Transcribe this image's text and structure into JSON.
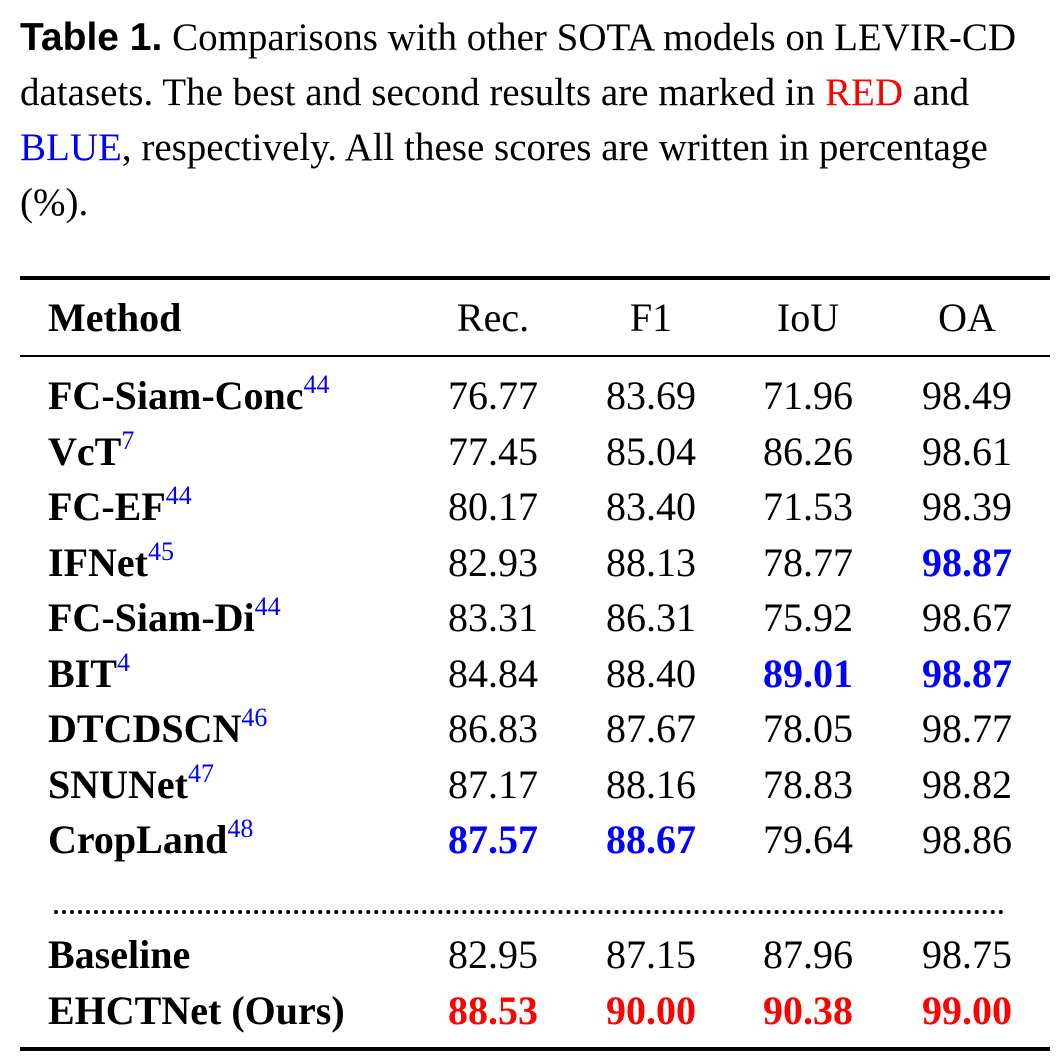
{
  "caption": {
    "label": "Table 1.",
    "text1": " Comparisons with other SOTA models on LEVIR-CD datasets. The best and second results are marked in ",
    "best_word": "RED",
    "text2": " and ",
    "second_word": "BLUE",
    "text3": ", respectively. All these scores are written in percentage (%)."
  },
  "colors": {
    "best": "#ff0000",
    "second": "#0000ff"
  },
  "table": {
    "header": [
      "Method",
      "Rec.",
      "F1",
      "IoU",
      "OA"
    ],
    "groups": [
      [
        {
          "method": "FC-Siam-Conc",
          "ref": "44",
          "cells": [
            "76.77",
            "83.69",
            "71.96",
            "98.49"
          ],
          "ranks": [
            null,
            null,
            null,
            null
          ]
        },
        {
          "method": "VcT",
          "ref": "7",
          "cells": [
            "77.45",
            "85.04",
            "86.26",
            "98.61"
          ],
          "ranks": [
            null,
            null,
            null,
            null
          ]
        },
        {
          "method": "FC-EF",
          "ref": "44",
          "cells": [
            "80.17",
            "83.40",
            "71.53",
            "98.39"
          ],
          "ranks": [
            null,
            null,
            null,
            null
          ]
        },
        {
          "method": "IFNet",
          "ref": "45",
          "cells": [
            "82.93",
            "88.13",
            "78.77",
            "98.87"
          ],
          "ranks": [
            null,
            null,
            null,
            "second"
          ]
        },
        {
          "method": "FC-Siam-Di",
          "ref": "44",
          "cells": [
            "83.31",
            "86.31",
            "75.92",
            "98.67"
          ],
          "ranks": [
            null,
            null,
            null,
            null
          ]
        },
        {
          "method": "BIT",
          "ref": "4",
          "cells": [
            "84.84",
            "88.40",
            "89.01",
            "98.87"
          ],
          "ranks": [
            null,
            null,
            "second",
            "second"
          ]
        },
        {
          "method": "DTCDSCN",
          "ref": "46",
          "cells": [
            "86.83",
            "87.67",
            "78.05",
            "98.77"
          ],
          "ranks": [
            null,
            null,
            null,
            null
          ]
        },
        {
          "method": "SNUNet",
          "ref": "47",
          "cells": [
            "87.17",
            "88.16",
            "78.83",
            "98.82"
          ],
          "ranks": [
            null,
            null,
            null,
            null
          ]
        },
        {
          "method": "CropLand",
          "ref": "48",
          "cells": [
            "87.57",
            "88.67",
            "79.64",
            "98.86"
          ],
          "ranks": [
            "second",
            "second",
            null,
            null
          ]
        }
      ],
      [
        {
          "method": "Baseline",
          "cells": [
            "82.95",
            "87.15",
            "87.96",
            "98.75"
          ],
          "ranks": [
            null,
            null,
            null,
            null
          ]
        },
        {
          "method": "EHCTNet (Ours)",
          "cells": [
            "88.53",
            "90.00",
            "90.38",
            "99.00"
          ],
          "ranks": [
            "best",
            "best",
            "best",
            "best"
          ]
        }
      ]
    ]
  }
}
